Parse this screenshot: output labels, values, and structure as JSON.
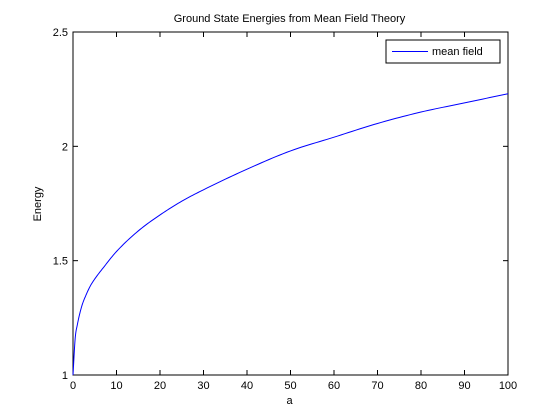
{
  "chart_data": {
    "type": "line",
    "title": "Ground State Energies from Mean Field Theory",
    "xlabel": "a",
    "ylabel": "Energy",
    "xlim": [
      0,
      100
    ],
    "ylim": [
      1,
      2.5
    ],
    "xticks": [
      0,
      10,
      20,
      30,
      40,
      50,
      60,
      70,
      80,
      90,
      100
    ],
    "yticks": [
      1,
      1.5,
      2,
      2.5
    ],
    "ytick_labels": [
      "1",
      "1.5",
      "2",
      "2.5"
    ],
    "grid": false,
    "legend_position": "top-right",
    "series": [
      {
        "name": "mean field",
        "color": "#0000ff",
        "x": [
          0,
          0.5,
          1,
          2,
          3,
          4,
          5,
          7,
          10,
          15,
          20,
          25,
          30,
          40,
          50,
          60,
          70,
          80,
          90,
          100
        ],
        "y": [
          1.0,
          1.16,
          1.22,
          1.3,
          1.35,
          1.39,
          1.42,
          1.47,
          1.54,
          1.63,
          1.7,
          1.76,
          1.81,
          1.9,
          1.98,
          2.04,
          2.1,
          2.15,
          2.19,
          2.23
        ]
      }
    ]
  }
}
